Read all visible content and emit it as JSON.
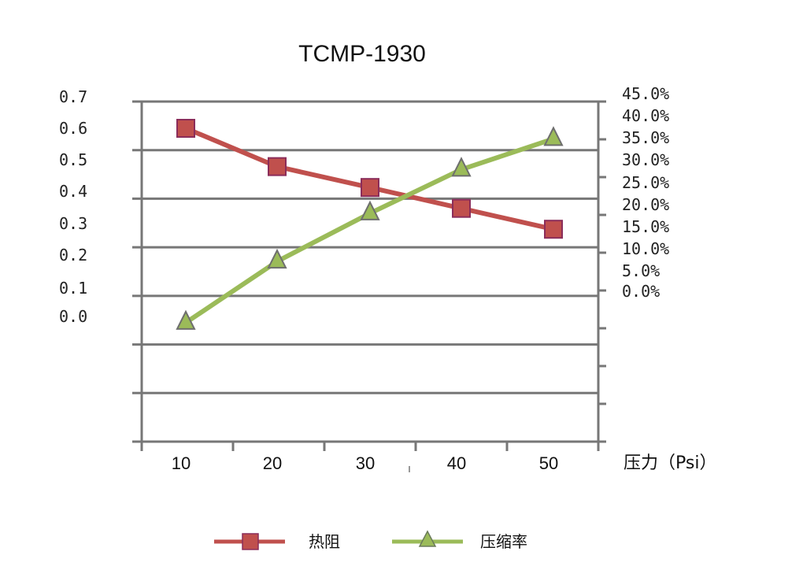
{
  "chart_data": {
    "type": "line",
    "title": "TCMP-1930",
    "xlabel": "压力（Psi）",
    "categories": [
      "10",
      "20",
      "30",
      "40",
      "50"
    ],
    "left_axis": {
      "ticks": [
        "0.7",
        "0.6",
        "0.5",
        "0.4",
        "0.3",
        "0.2",
        "0.1",
        "0.0"
      ]
    },
    "right_axis": {
      "ticks": [
        "45.0%",
        "40.0%",
        "35.0%",
        "30.0%",
        "25.0%",
        "20.0%",
        "15.0%",
        "10.0%",
        "5.0%",
        "0.0%"
      ]
    },
    "grid": true,
    "legend_position": "bottom",
    "series": [
      {
        "name": "热阻",
        "axis": "left",
        "values": [
          0.57,
          0.46,
          0.4,
          0.34,
          0.28
        ],
        "color": "#c0504d",
        "marker": "square"
      },
      {
        "name": "压缩率",
        "axis": "right",
        "values": [
          -7.0,
          7.0,
          18.0,
          28.0,
          35.0
        ],
        "color": "#9bbb59",
        "marker": "triangle"
      }
    ]
  }
}
